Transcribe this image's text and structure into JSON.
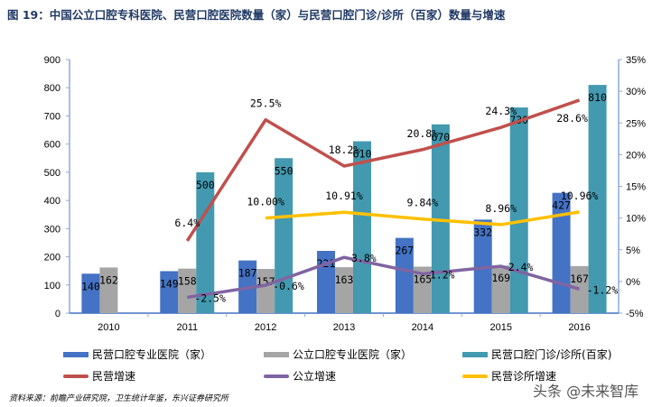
{
  "title": "图 19：中国公立口腔专科医院、民营口腔医院数量（家）与民营口腔门诊/诊所（百家）数量与增速",
  "source": "资料来源：前瞻产业研究院，卫生统计年鉴，东兴证券研究所",
  "watermark": "头条 @未来智库",
  "chart_data": {
    "type": "bar",
    "categories": [
      "2010",
      "2011",
      "2012",
      "2013",
      "2014",
      "2015",
      "2016"
    ],
    "y_left": {
      "range": [
        0,
        900
      ],
      "ticks": [
        "0",
        "100",
        "200",
        "300",
        "400",
        "500",
        "600",
        "700",
        "800",
        "900"
      ]
    },
    "y_right": {
      "range": [
        -5,
        35
      ],
      "ticks": [
        "-5%",
        "0%",
        "5%",
        "10%",
        "15%",
        "20%",
        "25%",
        "30%",
        "35%"
      ]
    },
    "grid": false,
    "legend_position": "bottom",
    "bar_series": [
      {
        "name": "民营口腔专业医院（家）",
        "color": "#4472c4",
        "values": [
          140,
          149,
          187,
          221,
          267,
          332,
          427
        ],
        "labels": [
          "140",
          "149",
          "187",
          "221",
          "267",
          "332",
          "427"
        ]
      },
      {
        "name": "公立口腔专业医院（家）",
        "color": "#a5a5a5",
        "values": [
          162,
          158,
          157,
          163,
          165,
          169,
          167
        ],
        "labels": [
          "162",
          "158",
          "157",
          "163",
          "165",
          "169",
          "167"
        ]
      },
      {
        "name": "民营口腔门诊/诊所(百家)",
        "color": "#4299b0",
        "values": [
          null,
          500,
          550,
          610,
          670,
          730,
          810
        ],
        "labels": [
          null,
          "500",
          "550",
          "610",
          "670",
          "730",
          "810"
        ]
      }
    ],
    "line_series": [
      {
        "name": "民营增速",
        "color": "#c0504d",
        "axis": "right",
        "values": [
          null,
          6.4,
          25.5,
          18.2,
          20.8,
          24.3,
          28.6
        ],
        "labels": [
          null,
          "6.4%",
          "25.5%",
          "18.2%",
          "20.8%",
          "24.3%",
          "28.6%"
        ]
      },
      {
        "name": "公立增速",
        "color": "#8064a2",
        "axis": "right",
        "values": [
          null,
          -2.5,
          -0.6,
          3.8,
          1.2,
          2.4,
          -1.2
        ],
        "labels": [
          null,
          "-2.5%",
          "-0.6%",
          "3.8%",
          "1.2%",
          "2.4%",
          "-1.2%"
        ]
      },
      {
        "name": "民营诊所增速",
        "color": "#ffc000",
        "axis": "right",
        "values": [
          null,
          null,
          10.0,
          10.91,
          9.84,
          8.96,
          10.96
        ],
        "labels": [
          null,
          null,
          "10.00%",
          "10.91%",
          "9.84%",
          "8.96%",
          "10.96%"
        ]
      }
    ]
  }
}
